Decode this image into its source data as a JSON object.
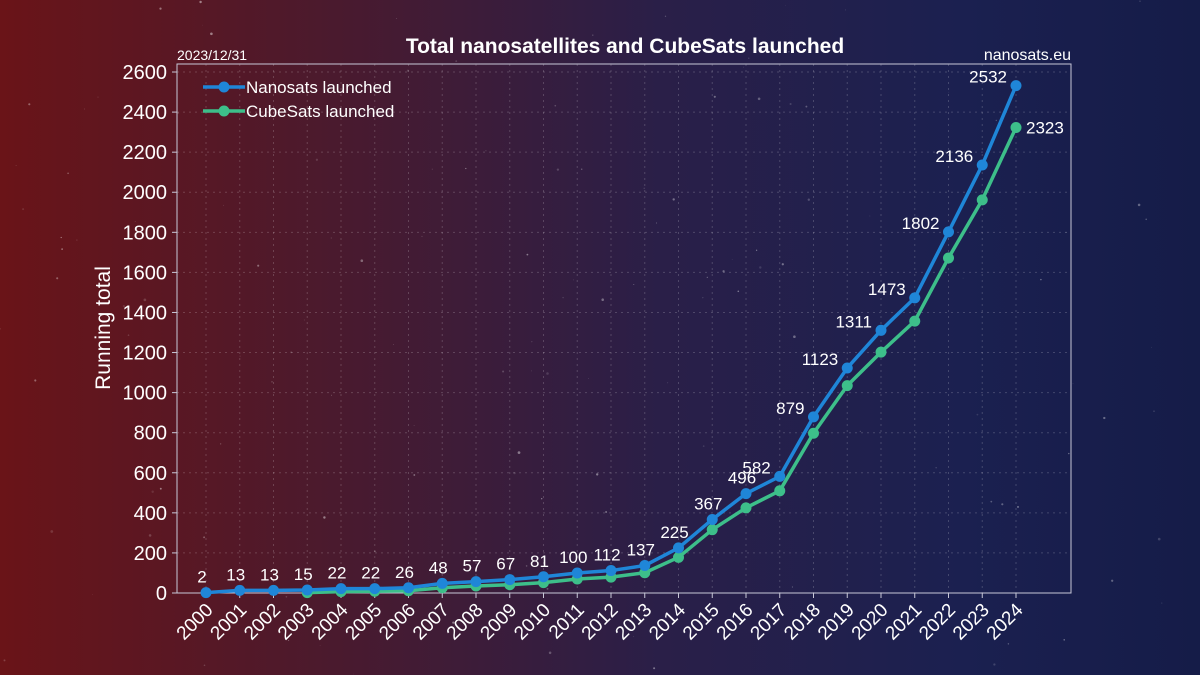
{
  "chart_data": {
    "type": "line",
    "title": "Total nanosatellites and CubeSats launched",
    "date_label": "2023/12/31",
    "source_label": "nanosats.eu",
    "xlabel": "",
    "ylabel": "Running total",
    "categories": [
      "2000",
      "2001",
      "2002",
      "2003",
      "2004",
      "2005",
      "2006",
      "2007",
      "2008",
      "2009",
      "2010",
      "2011",
      "2012",
      "2013",
      "2014",
      "2015",
      "2016",
      "2017",
      "2018",
      "2019",
      "2020",
      "2021",
      "2022",
      "2023",
      "2024"
    ],
    "yticks": [
      0,
      200,
      400,
      600,
      800,
      1000,
      1200,
      1400,
      1600,
      1800,
      2000,
      2200,
      2400,
      2600
    ],
    "ylim": [
      0,
      2640
    ],
    "grid": true,
    "legend_position": "top-left",
    "series": [
      {
        "name": "Nanosats launched",
        "color": "#1f86d8",
        "values": [
          2,
          13,
          13,
          15,
          22,
          22,
          26,
          48,
          57,
          67,
          81,
          100,
          112,
          137,
          225,
          367,
          496,
          582,
          879,
          1123,
          1311,
          1473,
          1802,
          2136,
          2532
        ],
        "labels": [
          "2",
          "13",
          "13",
          "15",
          "22",
          "22",
          "26",
          "48",
          "57",
          "67",
          "81",
          "100",
          "112",
          "137",
          "225",
          "367",
          "496",
          "582",
          "879",
          "1123",
          "1311",
          "1473",
          "1802",
          "2136",
          "2532"
        ]
      },
      {
        "name": "CubeSats launched",
        "color": "#3dbf8a",
        "values": [
          null,
          null,
          null,
          2,
          7,
          9,
          11,
          26,
          35,
          41,
          52,
          70,
          79,
          101,
          178,
          316,
          425,
          510,
          797,
          1035,
          1202,
          1357,
          1672,
          1962,
          2323
        ],
        "labels": [
          "",
          "",
          "",
          "",
          "",
          "",
          "",
          "",
          "",
          "",
          "",
          "",
          "",
          "",
          "",
          "",
          "",
          "",
          "",
          "",
          "",
          "",
          "",
          "",
          "2323"
        ]
      }
    ]
  }
}
